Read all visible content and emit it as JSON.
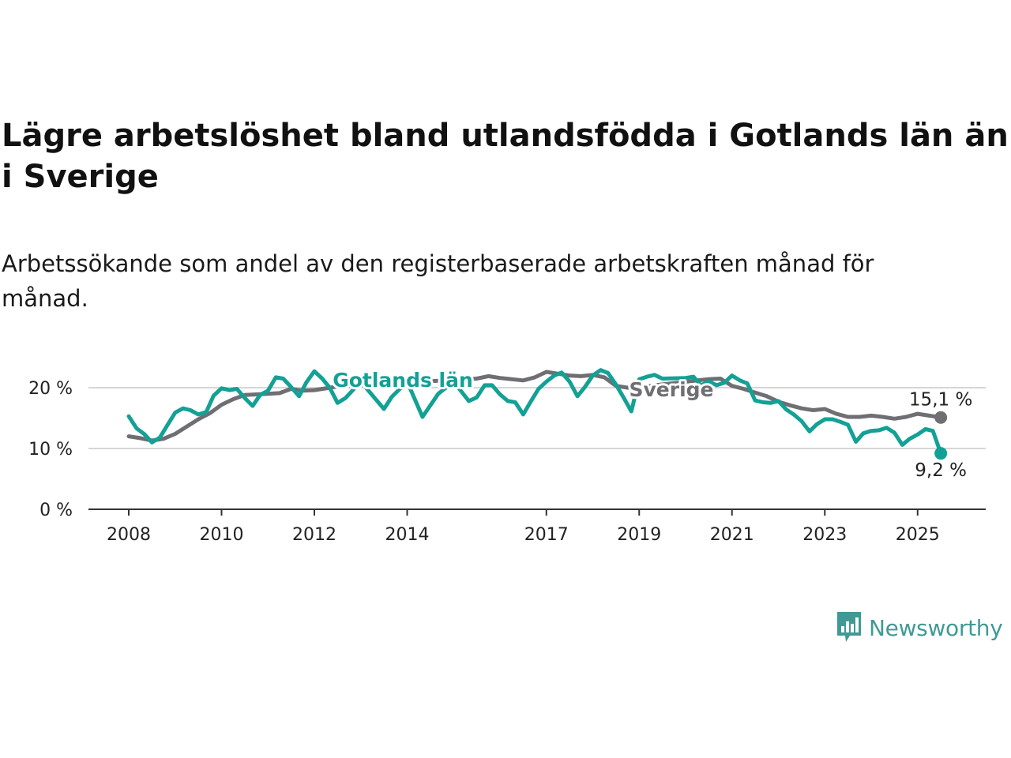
{
  "title": "Lägre arbetslöshet bland utlandsfödda i Gotlands län än i Sverige",
  "subtitle": "Arbetssökande som andel av den registerbaserade arbetskraften månad för månad.",
  "brand": {
    "name": "Newsworthy",
    "icon": "chart-bubble-icon",
    "color": "#3f9a95"
  },
  "chart_data": {
    "type": "line",
    "title": "Lägre arbetslöshet bland utlandsfödda i Gotlands län än i Sverige",
    "subtitle": "Arbetssökande som andel av den registerbaserade arbetskraften månad för månad.",
    "xlabel": "",
    "ylabel": "",
    "xlim": [
      2008,
      2025.6
    ],
    "ylim": [
      0,
      22
    ],
    "x_ticks": [
      2008,
      2010,
      2012,
      2014,
      2017,
      2019,
      2021,
      2023,
      2025
    ],
    "x_tick_labels": [
      "2008",
      "2010",
      "2012",
      "2014",
      "2017",
      "2019",
      "2021",
      "2023",
      "2025"
    ],
    "y_ticks": [
      0,
      10,
      20
    ],
    "y_tick_labels": [
      "0 %",
      "10 %",
      "20 %"
    ],
    "grid": "horizontal",
    "legend": "direct labels",
    "series": [
      {
        "name": "Sverige",
        "color": "#6e6e73",
        "end_label": "15,1 %",
        "points": [
          [
            2008.0,
            12.0
          ],
          [
            2008.25,
            11.7
          ],
          [
            2008.5,
            11.3
          ],
          [
            2008.75,
            11.6
          ],
          [
            2009.0,
            12.4
          ],
          [
            2009.25,
            13.6
          ],
          [
            2009.5,
            14.8
          ],
          [
            2009.75,
            15.8
          ],
          [
            2010.0,
            17.2
          ],
          [
            2010.25,
            18.1
          ],
          [
            2010.5,
            18.8
          ],
          [
            2010.75,
            18.9
          ],
          [
            2011.0,
            19.0
          ],
          [
            2011.25,
            19.1
          ],
          [
            2011.5,
            19.8
          ],
          [
            2011.75,
            19.5
          ],
          [
            2012.0,
            19.6
          ],
          [
            2012.5,
            20.2
          ],
          [
            2015.5,
            21.5
          ],
          [
            2015.75,
            21.9
          ],
          [
            2016.0,
            21.6
          ],
          [
            2016.5,
            21.2
          ],
          [
            2016.75,
            21.7
          ],
          [
            2017.0,
            22.6
          ],
          [
            2017.25,
            22.3
          ],
          [
            2017.5,
            22.0
          ],
          [
            2017.75,
            21.9
          ],
          [
            2018.0,
            22.1
          ],
          [
            2018.25,
            21.7
          ],
          [
            2018.5,
            20.3
          ],
          [
            2018.75,
            20.0
          ],
          [
            2019.0,
            20.1
          ],
          [
            2020.5,
            21.4
          ],
          [
            2020.75,
            21.5
          ],
          [
            2021.0,
            20.3
          ],
          [
            2021.25,
            19.8
          ],
          [
            2021.5,
            19.2
          ],
          [
            2021.75,
            18.6
          ],
          [
            2022.0,
            17.7
          ],
          [
            2022.25,
            17.1
          ],
          [
            2022.5,
            16.6
          ],
          [
            2022.75,
            16.3
          ],
          [
            2023.0,
            16.5
          ],
          [
            2023.25,
            15.7
          ],
          [
            2023.5,
            15.2
          ],
          [
            2023.75,
            15.2
          ],
          [
            2024.0,
            15.4
          ],
          [
            2024.25,
            15.2
          ],
          [
            2024.5,
            14.9
          ],
          [
            2024.75,
            15.2
          ],
          [
            2025.0,
            15.7
          ],
          [
            2025.25,
            15.4
          ],
          [
            2025.5,
            15.1
          ]
        ]
      },
      {
        "name": "Gotlands län",
        "color": "#13a195",
        "end_label": "9,2 %",
        "points": [
          [
            2008.0,
            15.3
          ],
          [
            2008.17,
            13.3
          ],
          [
            2008.33,
            12.4
          ],
          [
            2008.5,
            11.0
          ],
          [
            2008.67,
            11.8
          ],
          [
            2008.83,
            13.8
          ],
          [
            2009.0,
            15.9
          ],
          [
            2009.17,
            16.6
          ],
          [
            2009.33,
            16.3
          ],
          [
            2009.5,
            15.6
          ],
          [
            2009.67,
            16.0
          ],
          [
            2009.83,
            18.7
          ],
          [
            2010.0,
            19.9
          ],
          [
            2010.17,
            19.6
          ],
          [
            2010.33,
            19.8
          ],
          [
            2010.5,
            18.3
          ],
          [
            2010.67,
            17.0
          ],
          [
            2010.83,
            18.8
          ],
          [
            2011.0,
            19.5
          ],
          [
            2011.17,
            21.7
          ],
          [
            2011.33,
            21.5
          ],
          [
            2011.5,
            20.1
          ],
          [
            2011.67,
            18.6
          ],
          [
            2011.83,
            20.9
          ],
          [
            2012.0,
            22.7
          ],
          [
            2012.17,
            21.5
          ],
          [
            2012.33,
            20.0
          ],
          [
            2012.5,
            17.5
          ],
          [
            2012.67,
            18.3
          ],
          [
            2013.0,
            21.0
          ],
          [
            2013.5,
            16.5
          ],
          [
            2013.67,
            18.5
          ],
          [
            2014.0,
            21.0
          ],
          [
            2014.33,
            15.2
          ],
          [
            2014.67,
            19.0
          ],
          [
            2015.0,
            21.0
          ],
          [
            2015.33,
            17.8
          ],
          [
            2015.5,
            18.4
          ],
          [
            2015.67,
            20.4
          ],
          [
            2015.83,
            20.4
          ],
          [
            2016.0,
            18.9
          ],
          [
            2016.17,
            17.8
          ],
          [
            2016.33,
            17.6
          ],
          [
            2016.5,
            15.6
          ],
          [
            2016.67,
            17.8
          ],
          [
            2016.83,
            19.8
          ],
          [
            2017.0,
            21.0
          ],
          [
            2017.17,
            22.0
          ],
          [
            2017.33,
            22.5
          ],
          [
            2017.5,
            21.0
          ],
          [
            2017.67,
            18.6
          ],
          [
            2017.83,
            20.1
          ],
          [
            2018.0,
            22.0
          ],
          [
            2018.17,
            22.9
          ],
          [
            2018.33,
            22.4
          ],
          [
            2018.5,
            20.5
          ],
          [
            2018.67,
            18.3
          ],
          [
            2018.83,
            16.1
          ],
          [
            2019.0,
            21.4
          ],
          [
            2019.17,
            21.8
          ],
          [
            2019.33,
            22.1
          ],
          [
            2019.5,
            21.5
          ],
          [
            2020.0,
            21.6
          ],
          [
            2020.17,
            21.8
          ],
          [
            2020.33,
            20.4
          ],
          [
            2020.5,
            21.0
          ],
          [
            2020.67,
            20.4
          ],
          [
            2020.83,
            20.8
          ],
          [
            2021.0,
            22.0
          ],
          [
            2021.17,
            21.2
          ],
          [
            2021.33,
            20.7
          ],
          [
            2021.5,
            17.9
          ],
          [
            2021.67,
            17.6
          ],
          [
            2021.83,
            17.5
          ],
          [
            2022.0,
            17.8
          ],
          [
            2022.17,
            16.4
          ],
          [
            2022.33,
            15.6
          ],
          [
            2022.5,
            14.5
          ],
          [
            2022.67,
            12.8
          ],
          [
            2022.83,
            14.0
          ],
          [
            2023.0,
            14.8
          ],
          [
            2023.17,
            14.8
          ],
          [
            2023.33,
            14.4
          ],
          [
            2023.5,
            13.9
          ],
          [
            2023.67,
            11.1
          ],
          [
            2023.83,
            12.5
          ],
          [
            2024.0,
            12.9
          ],
          [
            2024.17,
            13.0
          ],
          [
            2024.33,
            13.4
          ],
          [
            2024.5,
            12.6
          ],
          [
            2024.67,
            10.6
          ],
          [
            2024.83,
            11.6
          ],
          [
            2025.0,
            12.3
          ],
          [
            2025.17,
            13.2
          ],
          [
            2025.33,
            12.9
          ],
          [
            2025.5,
            9.2
          ]
        ]
      }
    ]
  }
}
